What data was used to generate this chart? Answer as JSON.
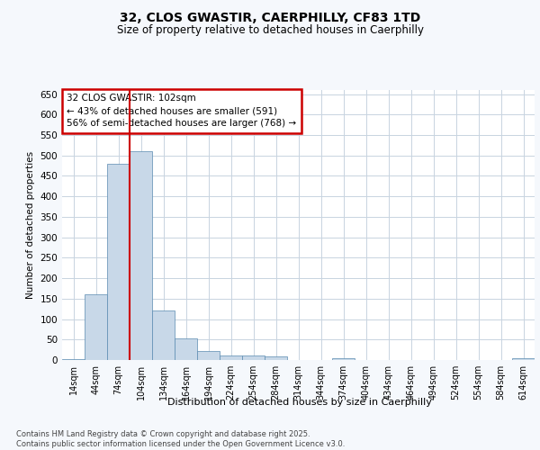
{
  "title_line1": "32, CLOS GWASTIR, CAERPHILLY, CF83 1TD",
  "title_line2": "Size of property relative to detached houses in Caerphilly",
  "xlabel": "Distribution of detached houses by size in Caerphilly",
  "ylabel": "Number of detached properties",
  "footnote": "Contains HM Land Registry data © Crown copyright and database right 2025.\nContains public sector information licensed under the Open Government Licence v3.0.",
  "bar_labels": [
    "14sqm",
    "44sqm",
    "74sqm",
    "104sqm",
    "134sqm",
    "164sqm",
    "194sqm",
    "224sqm",
    "254sqm",
    "284sqm",
    "314sqm",
    "344sqm",
    "374sqm",
    "404sqm",
    "434sqm",
    "464sqm",
    "494sqm",
    "524sqm",
    "554sqm",
    "584sqm",
    "614sqm"
  ],
  "bar_values": [
    3,
    160,
    480,
    510,
    120,
    52,
    22,
    12,
    11,
    9,
    0,
    0,
    5,
    0,
    0,
    0,
    0,
    0,
    0,
    0,
    4
  ],
  "bar_color": "#c8d8e8",
  "bar_edge_color": "#5a8ab0",
  "ylim": [
    0,
    660
  ],
  "yticks": [
    0,
    50,
    100,
    150,
    200,
    250,
    300,
    350,
    400,
    450,
    500,
    550,
    600,
    650
  ],
  "grid_color": "#c8d4e0",
  "annotation_text": "32 CLOS GWASTIR: 102sqm\n← 43% of detached houses are smaller (591)\n56% of semi-detached houses are larger (768) →",
  "vline_color": "#cc0000",
  "annotation_box_color": "#cc0000",
  "background_color": "#ffffff",
  "fig_bg_color": "#f5f8fc",
  "vline_x": 2.5
}
